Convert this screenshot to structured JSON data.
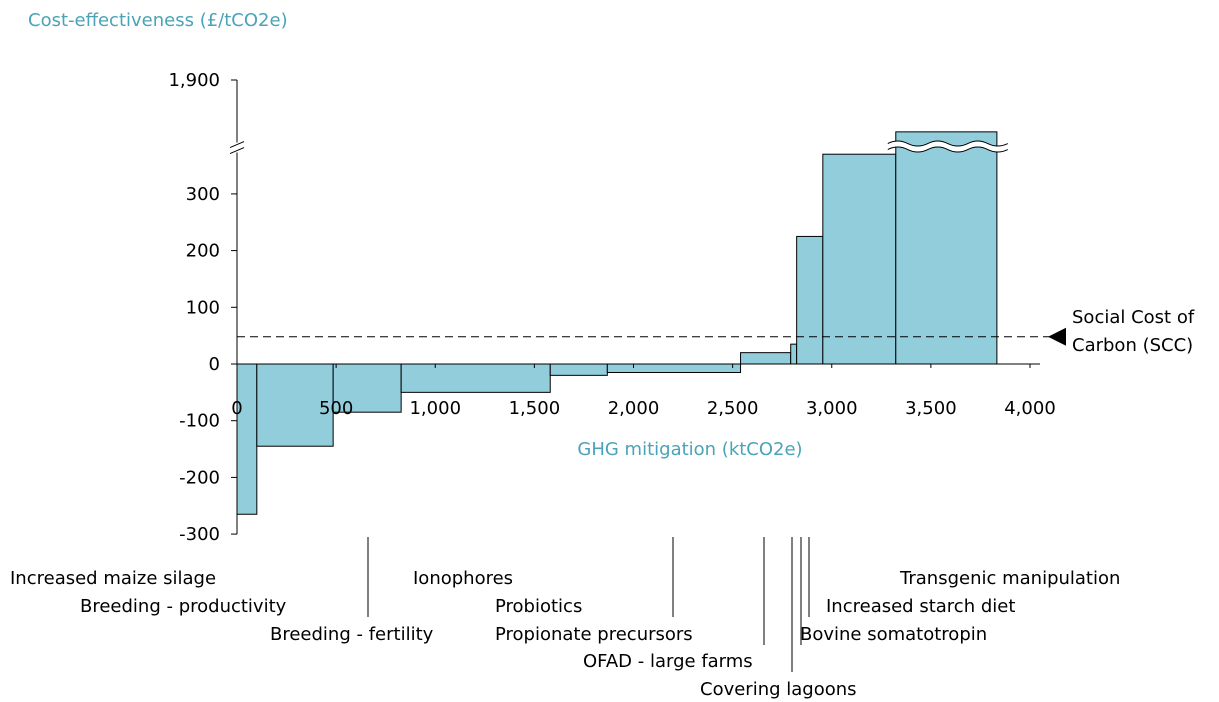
{
  "chart_data": {
    "type": "macc",
    "title": "Cost-effectiveness (£/tCO2e)",
    "x_label": "GHG mitigation (ktCO2e)",
    "categories": [
      "Increased maize silage",
      "Breeding - productivity",
      "Breeding - fertility",
      "Ionophores",
      "Probiotics",
      "Propionate precursors",
      "OFAD - large farms",
      "Covering lagoons",
      "Bovine somatotropin",
      "Increased starch diet",
      "Transgenic manipulation"
    ],
    "widths": [
      100,
      385,
      343,
      752,
      288,
      672,
      253,
      30,
      132,
      368,
      510
    ],
    "values": [
      -265,
      -145,
      -85,
      -50,
      -20,
      -15,
      20,
      35,
      225,
      370,
      750
    ],
    "color": "#92cddc",
    "xlim": [
      0,
      4000
    ],
    "xticks": [
      0,
      500,
      {
        "value": 1000,
        "label": "1,000"
      },
      {
        "value": 1500,
        "label": "1,500"
      },
      {
        "value": 2000,
        "label": "2,000"
      },
      {
        "value": 2500,
        "label": "2,500"
      },
      {
        "value": 3000,
        "label": "3,000"
      },
      {
        "value": 3500,
        "label": "3,500"
      },
      {
        "value": 4000,
        "label": "4,000"
      }
    ],
    "ylim": [
      -300,
      1900
    ],
    "yticks": [
      -300,
      -200,
      -100,
      0,
      100,
      200,
      300,
      {
        "value": 1900,
        "label": "1,900"
      }
    ],
    "reference_line": {
      "value": 48,
      "label": [
        "Social Cost of",
        "Carbon (SCC)"
      ]
    }
  }
}
